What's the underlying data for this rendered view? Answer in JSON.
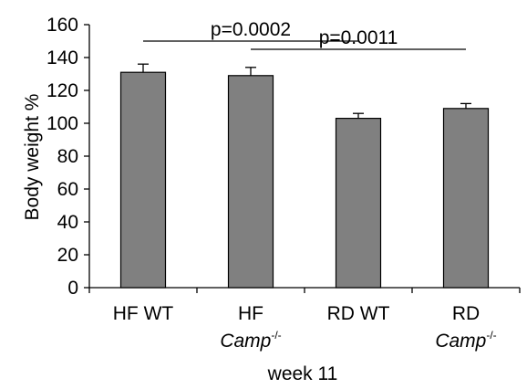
{
  "chart_data": {
    "type": "bar",
    "categories": [
      {
        "line1": "HF WT",
        "line2": "",
        "line2_sup": ""
      },
      {
        "line1": "HF",
        "line2": "Camp",
        "line2_sup": "-/-"
      },
      {
        "line1": "RD WT",
        "line2": "",
        "line2_sup": ""
      },
      {
        "line1": "RD",
        "line2": "Camp",
        "line2_sup": "-/-"
      }
    ],
    "values": [
      131,
      129,
      103,
      109
    ],
    "errors": [
      5,
      5,
      3,
      3
    ],
    "ylim": [
      0,
      160
    ],
    "yticks": [
      0,
      20,
      40,
      60,
      80,
      100,
      120,
      140,
      160
    ],
    "ylabel": "Body weight %",
    "xlabel": "week 11",
    "bar_color": "#808080",
    "grid": false,
    "annotations": [
      {
        "text": "p=0.0002",
        "from": 0,
        "to": 2,
        "level": 150
      },
      {
        "text": "p=0.0011",
        "from": 1,
        "to": 3,
        "level": 145
      }
    ]
  }
}
